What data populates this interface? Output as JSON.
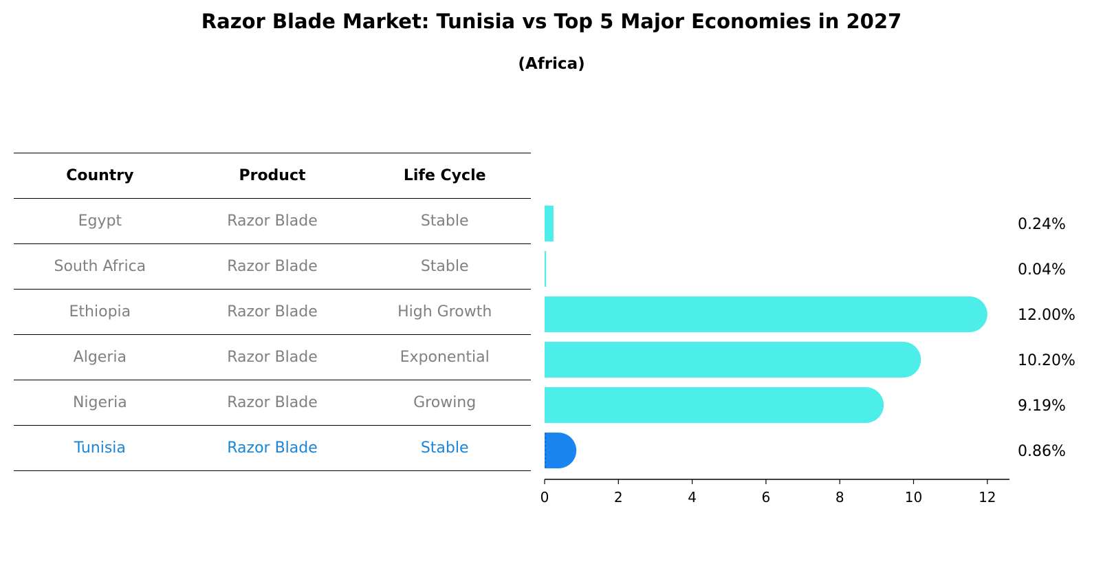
{
  "title": "Razor Blade Market: Tunisia vs Top 5 Major Economies in 2027",
  "subtitle": "(Africa)",
  "table": {
    "headers": [
      "Country",
      "Product",
      "Life Cycle"
    ],
    "rows": [
      [
        "Egypt",
        "Razor Blade",
        "Stable"
      ],
      [
        "South Africa",
        "Razor Blade",
        "Stable"
      ],
      [
        "Ethiopia",
        "Razor Blade",
        "High Growth"
      ],
      [
        "Algeria",
        "Razor Blade",
        "Exponential"
      ],
      [
        "Nigeria",
        "Razor Blade",
        "Growing"
      ],
      [
        "Tunisia",
        "Razor Blade",
        "Stable"
      ]
    ],
    "highlight_row": 5
  },
  "colors": {
    "bar": "#4dede9",
    "highlight": "#1a85f0",
    "highlight_text": "#1a85d6",
    "muted_text": "#808080"
  },
  "chart_data": {
    "type": "bar",
    "orientation": "horizontal",
    "categories": [
      "Egypt",
      "South Africa",
      "Ethiopia",
      "Algeria",
      "Nigeria",
      "Tunisia"
    ],
    "values": [
      0.24,
      0.04,
      12.0,
      10.2,
      9.19,
      0.86
    ],
    "value_labels": [
      "0.24%",
      "0.04%",
      "12.00%",
      "10.20%",
      "9.19%",
      "0.86%"
    ],
    "xlim": [
      0,
      12.6
    ],
    "xticks": [
      0,
      2,
      4,
      6,
      8,
      10,
      12
    ],
    "highlight_category": "Tunisia",
    "xlabel": "",
    "ylabel": ""
  }
}
